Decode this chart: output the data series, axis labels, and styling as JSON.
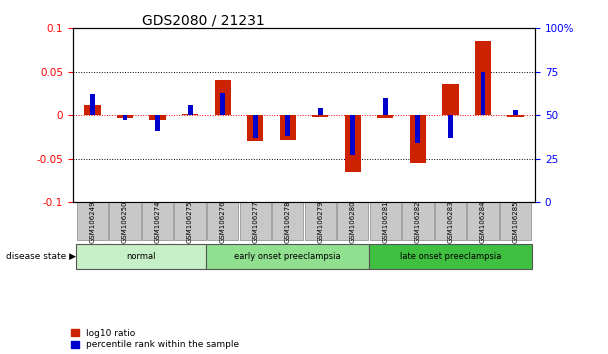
{
  "title": "GDS2080 / 21231",
  "samples": [
    "GSM106249",
    "GSM106250",
    "GSM106274",
    "GSM106275",
    "GSM106276",
    "GSM106277",
    "GSM106278",
    "GSM106279",
    "GSM106280",
    "GSM106281",
    "GSM106282",
    "GSM106283",
    "GSM106284",
    "GSM106285"
  ],
  "log10_ratio": [
    0.012,
    -0.003,
    -0.005,
    0.001,
    0.04,
    -0.03,
    -0.028,
    -0.002,
    -0.065,
    -0.003,
    -0.055,
    0.036,
    0.085,
    -0.002
  ],
  "percentile_raw": [
    62,
    47,
    41,
    56,
    63,
    37,
    38,
    54,
    27,
    60,
    34,
    37,
    75,
    53
  ],
  "ylim": [
    -0.1,
    0.1
  ],
  "yticks_left": [
    -0.1,
    -0.05,
    0.0,
    0.05,
    0.1
  ],
  "yticks_right": [
    0,
    25,
    50,
    75,
    100
  ],
  "ytick_labels_left": [
    "-0.1",
    "-0.05",
    "0",
    "0.05",
    "0.1"
  ],
  "ytick_labels_right": [
    "0",
    "25",
    "50",
    "75",
    "100%"
  ],
  "groups": [
    {
      "label": "normal",
      "start": 0,
      "end": 4,
      "color": "#c8f0c8"
    },
    {
      "label": "early onset preeclampsia",
      "start": 4,
      "end": 9,
      "color": "#90e090"
    },
    {
      "label": "late onset preeclampsia",
      "start": 9,
      "end": 14,
      "color": "#40c040"
    }
  ],
  "red_bar_width": 0.5,
  "blue_bar_width": 0.15,
  "red_color": "#cc2200",
  "blue_color": "#0000cc",
  "bg_color": "#ffffff",
  "tick_bg": "#c8c8c8",
  "legend_red": "log10 ratio",
  "legend_blue": "percentile rank within the sample",
  "disease_state_label": "disease state",
  "title_fontsize": 10,
  "axis_fontsize": 7.5,
  "label_fontsize": 7
}
